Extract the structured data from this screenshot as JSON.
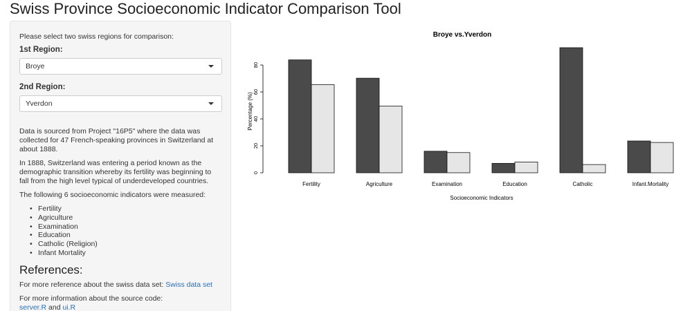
{
  "app": {
    "title": "Swiss Province Socioeconomic Indicator Comparison Tool"
  },
  "sidebar": {
    "intro": "Please select two swiss regions for comparison:",
    "region1": {
      "label": "1st Region:",
      "value": "Broye"
    },
    "region2": {
      "label": "2nd Region:",
      "value": "Yverdon"
    },
    "paragraph1": "Data is sourced from Project \"16P5\" where the data was collected for 47 French-speaking provinces in Switzerland at about 1888.",
    "paragraph2": "In 1888, Switzerland was entering a period known as the demographic transition whereby its fertility was beginning to fall from the high level typical of underdeveloped countries.",
    "paragraph3": "The following 6 socioeconomic indicators were measured:",
    "indicators": [
      "Fertility",
      "Agriculture",
      "Examination",
      "Education",
      "Catholic (Religion)",
      "Infant Mortality"
    ],
    "references": {
      "heading": "References:",
      "dataset_text": "For more reference about the swiss data set:",
      "dataset_link": "Swiss data set",
      "source_text": "For more information about the source code:",
      "server_link": "server.R",
      "and_text": "and",
      "ui_link": "ui.R"
    }
  },
  "colors": {
    "region1_bar": "#4a4a4a",
    "region2_bar": "#e6e6e6",
    "link": "#2a6ebb"
  },
  "chart_data": {
    "type": "bar",
    "title": "Broye vs.Yverdon",
    "xlabel": "Socioeconomic Indicators",
    "ylabel": "Percentage (%)",
    "categories": [
      "Fertility",
      "Agriculture",
      "Examination",
      "Education",
      "Catholic",
      "Infant.Mortality"
    ],
    "series": [
      {
        "values": [
          83.8,
          70.2,
          16,
          7,
          92.85,
          23.6
        ]
      },
      {
        "values": [
          65.4,
          49.5,
          15,
          8,
          6.1,
          22.5
        ]
      }
    ],
    "ylim": [
      0,
      92.85
    ],
    "yticks": [
      0,
      20,
      40,
      60,
      80
    ],
    "grid": false,
    "legend": "none"
  }
}
